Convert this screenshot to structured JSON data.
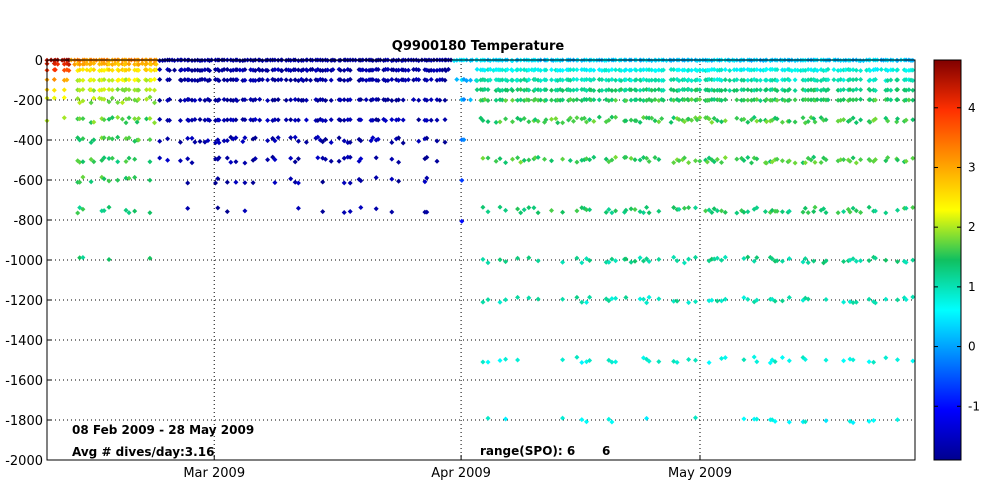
{
  "chart_data": {
    "type": "scatter",
    "title": "Q9900180 Temperature",
    "xlabel": "",
    "ylabel": "",
    "x_range": [
      "2009-02-08",
      "2009-05-28"
    ],
    "ylim": [
      -2000,
      0
    ],
    "y_ticks": [
      0,
      -200,
      -400,
      -600,
      -800,
      -1000,
      -1200,
      -1400,
      -1600,
      -1800,
      -2000
    ],
    "x_ticks": [
      {
        "date": "2009-03-01",
        "label": "Mar 2009"
      },
      {
        "date": "2009-04-01",
        "label": "Apr 2009"
      },
      {
        "date": "2009-05-01",
        "label": "May 2009"
      }
    ],
    "grid": true,
    "colorbar": {
      "label": "",
      "limits": [
        -1.9,
        4.8
      ],
      "ticks": [
        4,
        3,
        2,
        1,
        0,
        -1
      ],
      "colormap": "jet"
    },
    "annotations": {
      "date_range": "08 Feb 2009 - 28 May 2009",
      "avg_dives": "Avg # dives/day:3.16",
      "range_label": "range(SPO): 6",
      "range_value": "6"
    },
    "depth_levels": [
      0,
      -20,
      -50,
      -100,
      -150,
      -200,
      -300,
      -400,
      -500,
      -750,
      -1000,
      -1500
    ],
    "series": [
      {
        "period": [
          "2009-02-08",
          "2009-02-11"
        ],
        "depths": [
          0,
          -20,
          -50,
          -100,
          -150,
          -200,
          -300
        ],
        "temperature": [
          4.6,
          4.2,
          3.8,
          3.0,
          2.6,
          2.3,
          1.9
        ]
      },
      {
        "period": [
          "2009-02-11",
          "2009-02-22"
        ],
        "depths": [
          0,
          -20,
          -50,
          -100,
          -150,
          -200,
          -300,
          -400,
          -500,
          -600,
          -750,
          -1000
        ],
        "temperature": [
          3.2,
          2.9,
          2.5,
          2.2,
          2.0,
          1.9,
          1.7,
          1.6,
          1.5,
          1.5,
          1.4,
          1.3
        ]
      },
      {
        "period": [
          "2009-02-22",
          "2009-03-31"
        ],
        "depths": [
          0,
          -50,
          -100,
          -200,
          -300,
          -400,
          -500,
          -600,
          -750
        ],
        "temperature": [
          -1.8,
          -1.8,
          -1.8,
          -1.8,
          -1.7,
          -1.7,
          -1.7,
          -1.7,
          -1.7
        ]
      },
      {
        "period": [
          "2009-03-31",
          "2009-04-03"
        ],
        "depths": [
          0,
          -100,
          -200,
          -400,
          -600,
          -800
        ],
        "temperature": [
          0.4,
          0.2,
          0.0,
          -0.2,
          -0.5,
          -0.8
        ]
      },
      {
        "period": [
          "2009-04-03",
          "2009-05-28"
        ],
        "depths": [
          0,
          -50,
          -100,
          -150,
          -200,
          -300,
          -500,
          -750,
          -1000,
          -1200,
          -1500,
          -1800
        ],
        "temperature": [
          0.3,
          0.7,
          1.0,
          1.3,
          1.5,
          1.6,
          1.6,
          1.4,
          1.2,
          1.0,
          0.8,
          0.7
        ]
      }
    ]
  }
}
